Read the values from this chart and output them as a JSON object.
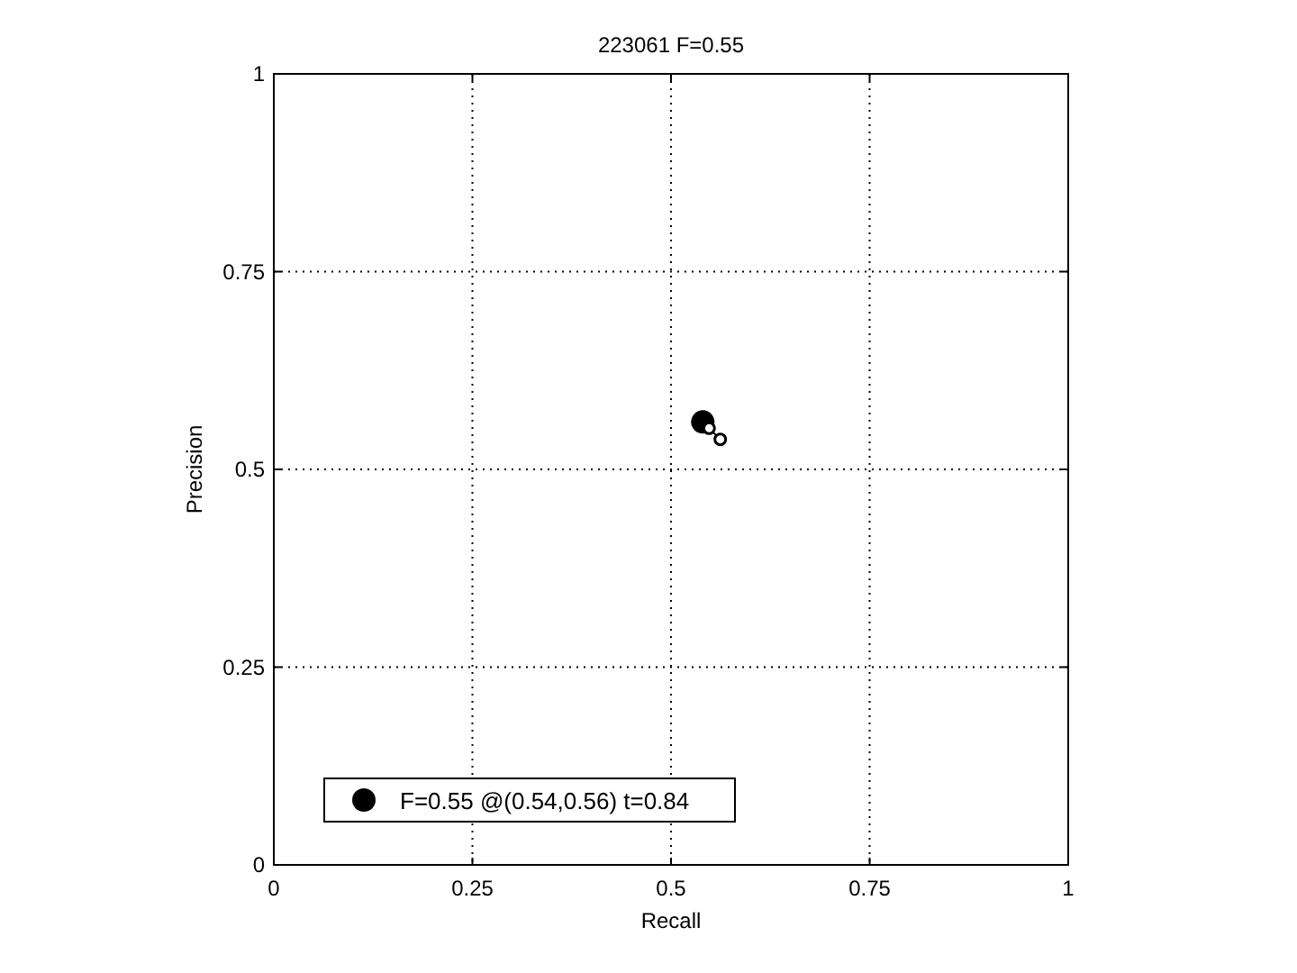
{
  "chart_data": {
    "type": "scatter",
    "title": "223061 F=0.55",
    "xlabel": "Recall",
    "ylabel": "Precision",
    "xlim": [
      0,
      1
    ],
    "ylim": [
      0,
      1
    ],
    "xticks": [
      0,
      0.25,
      0.5,
      0.75,
      1
    ],
    "yticks": [
      0,
      0.25,
      0.5,
      0.75,
      1
    ],
    "grid": true,
    "legend": "bottom left",
    "series": [
      {
        "type": "scatter",
        "name": "F=0.55 @(0.54,0.56) t=0.84",
        "color": "#000000",
        "x": [
          0.54
        ],
        "values": [
          0.56
        ],
        "marker": "circle"
      },
      {
        "type": "line",
        "color": "#000000",
        "x": [
          0.548,
          0.562
        ],
        "values": [
          0.552,
          0.538
        ],
        "marker": "circle"
      }
    ]
  }
}
